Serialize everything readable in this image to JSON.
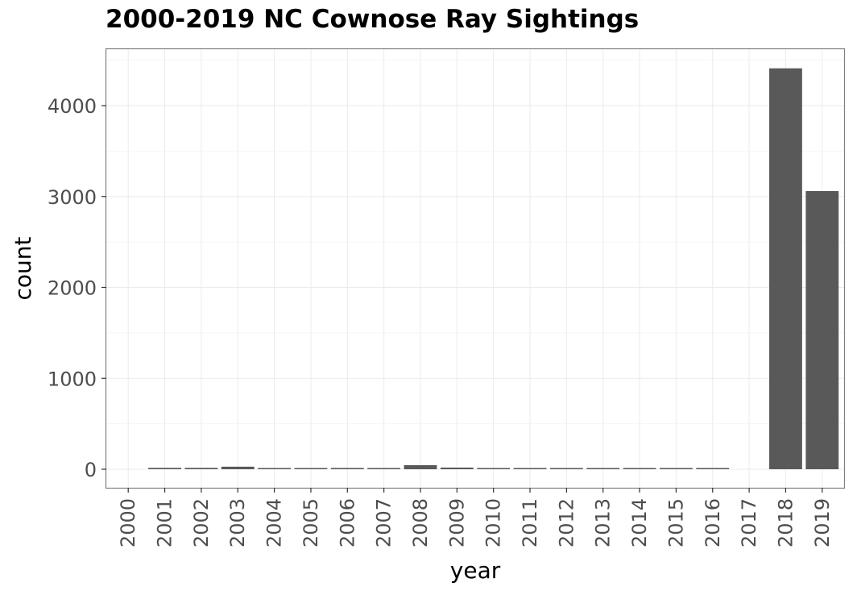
{
  "chart_data": {
    "type": "bar",
    "title": "2000-2019 NC Cownose Ray Sightings",
    "xlabel": "year",
    "ylabel": "count",
    "categories": [
      "2000",
      "2001",
      "2002",
      "2003",
      "2004",
      "2005",
      "2006",
      "2007",
      "2008",
      "2009",
      "2010",
      "2011",
      "2012",
      "2013",
      "2014",
      "2015",
      "2016",
      "2017",
      "2018",
      "2019"
    ],
    "values": [
      0,
      15,
      15,
      28,
      6,
      6,
      14,
      7,
      45,
      18,
      8,
      6,
      6,
      6,
      6,
      6,
      6,
      0,
      4410,
      3060
    ],
    "ylim": [
      0,
      4700
    ],
    "yticks": [
      "0",
      "1000",
      "2000",
      "3000",
      "4000"
    ],
    "bar_color": "#595959",
    "grid": true,
    "legend": "none"
  }
}
